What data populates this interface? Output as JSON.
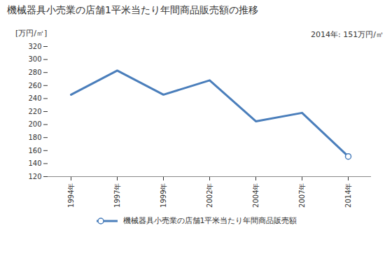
{
  "chart_data": {
    "type": "line",
    "title": "機械器具小売業の店舗1平米当たり年間商品販売額の推移",
    "y_label": "[万円/㎡]",
    "annotations": [
      "2014年: 151万円/㎡"
    ],
    "categories": [
      "1994年",
      "1997年",
      "1999年",
      "2002年",
      "2004年",
      "2007年",
      "2014年"
    ],
    "series": [
      {
        "name": "機械器具小売業の店舗1平米当たり年間商品販売額",
        "color": "#4a7ebb",
        "marker": "circle",
        "values": [
          246,
          283,
          246,
          268,
          205,
          218,
          151
        ]
      }
    ],
    "ylim": [
      120,
      320
    ],
    "yticks": [
      120,
      140,
      160,
      180,
      200,
      220,
      240,
      260,
      280,
      300,
      320
    ],
    "grid": false,
    "legend": "bottom"
  }
}
